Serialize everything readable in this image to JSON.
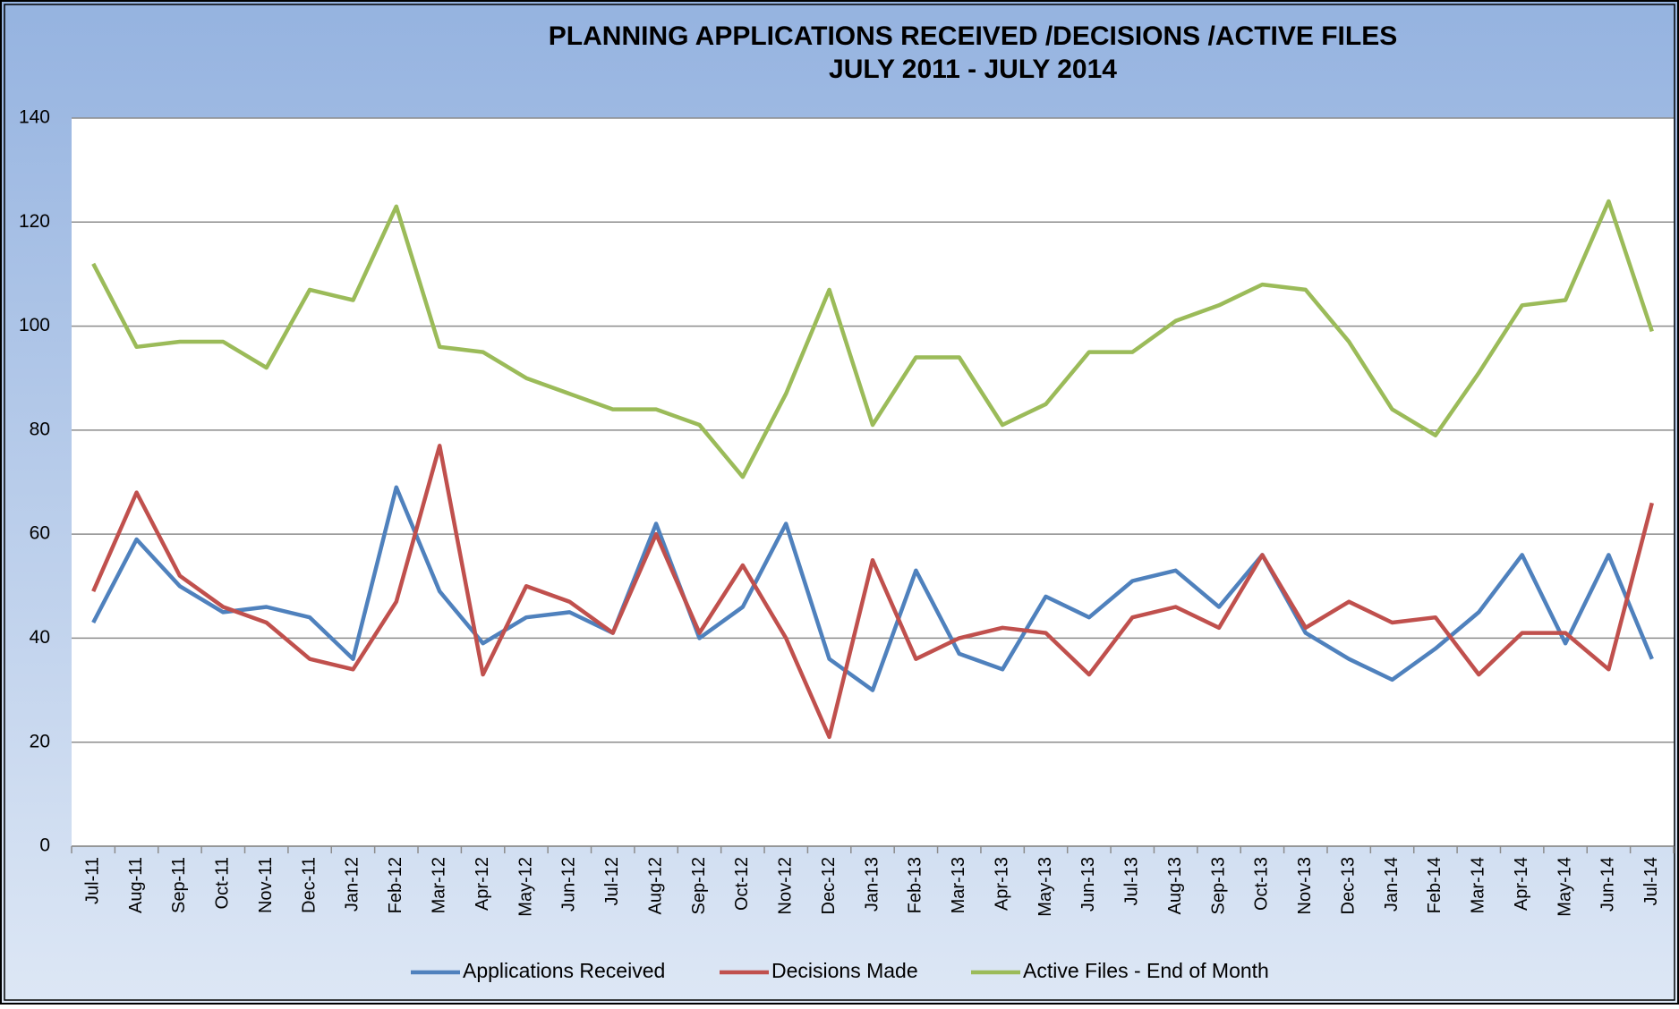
{
  "chart_data": {
    "type": "line",
    "title": "PLANNING APPLICATIONS RECEIVED /DECISIONS /ACTIVE FILES",
    "subtitle": "JULY 2011 - JULY  2014",
    "categories": [
      "Jul-11",
      "Aug-11",
      "Sep-11",
      "Oct-11",
      "Nov-11",
      "Dec-11",
      "Jan-12",
      "Feb-12",
      "Mar-12",
      "Apr-12",
      "May-12",
      "Jun-12",
      "Jul-12",
      "Aug-12",
      "Sep-12",
      "Oct-12",
      "Nov-12",
      "Dec-12",
      "Jan-13",
      "Feb-13",
      "Mar-13",
      "Apr-13",
      "May-13",
      "Jun-13",
      "Jul-13",
      "Aug-13",
      "Sep-13",
      "Oct-13",
      "Nov-13",
      "Dec-13",
      "Jan-14",
      "Feb-14",
      "Mar-14",
      "Apr-14",
      "May-14",
      "Jun-14",
      "Jul-14"
    ],
    "series": [
      {
        "name": "Applications Received",
        "color": "#4f81bd",
        "values": [
          43,
          59,
          50,
          45,
          46,
          44,
          36,
          69,
          49,
          39,
          44,
          45,
          41,
          62,
          40,
          46,
          62,
          36,
          30,
          53,
          37,
          34,
          48,
          44,
          51,
          53,
          46,
          56,
          41,
          36,
          32,
          38,
          45,
          56,
          39,
          56,
          36
        ]
      },
      {
        "name": "Decisions Made",
        "color": "#c0504d",
        "values": [
          49,
          68,
          52,
          46,
          43,
          36,
          34,
          47,
          77,
          33,
          50,
          47,
          41,
          60,
          41,
          54,
          40,
          21,
          55,
          36,
          40,
          42,
          41,
          33,
          44,
          46,
          42,
          56,
          42,
          47,
          43,
          44,
          33,
          41,
          41,
          34,
          66
        ]
      },
      {
        "name": "Active Files - End of Month",
        "color": "#9bbb59",
        "values": [
          112,
          96,
          97,
          97,
          92,
          107,
          105,
          123,
          96,
          95,
          90,
          87,
          84,
          84,
          81,
          71,
          87,
          107,
          81,
          94,
          94,
          81,
          85,
          95,
          95,
          101,
          104,
          108,
          107,
          97,
          84,
          79,
          91,
          104,
          105,
          124,
          99
        ]
      }
    ],
    "ylim": [
      0,
      140
    ],
    "yticks": [
      0,
      20,
      40,
      60,
      80,
      100,
      120,
      140
    ],
    "grid": true,
    "legend": "bottom"
  }
}
